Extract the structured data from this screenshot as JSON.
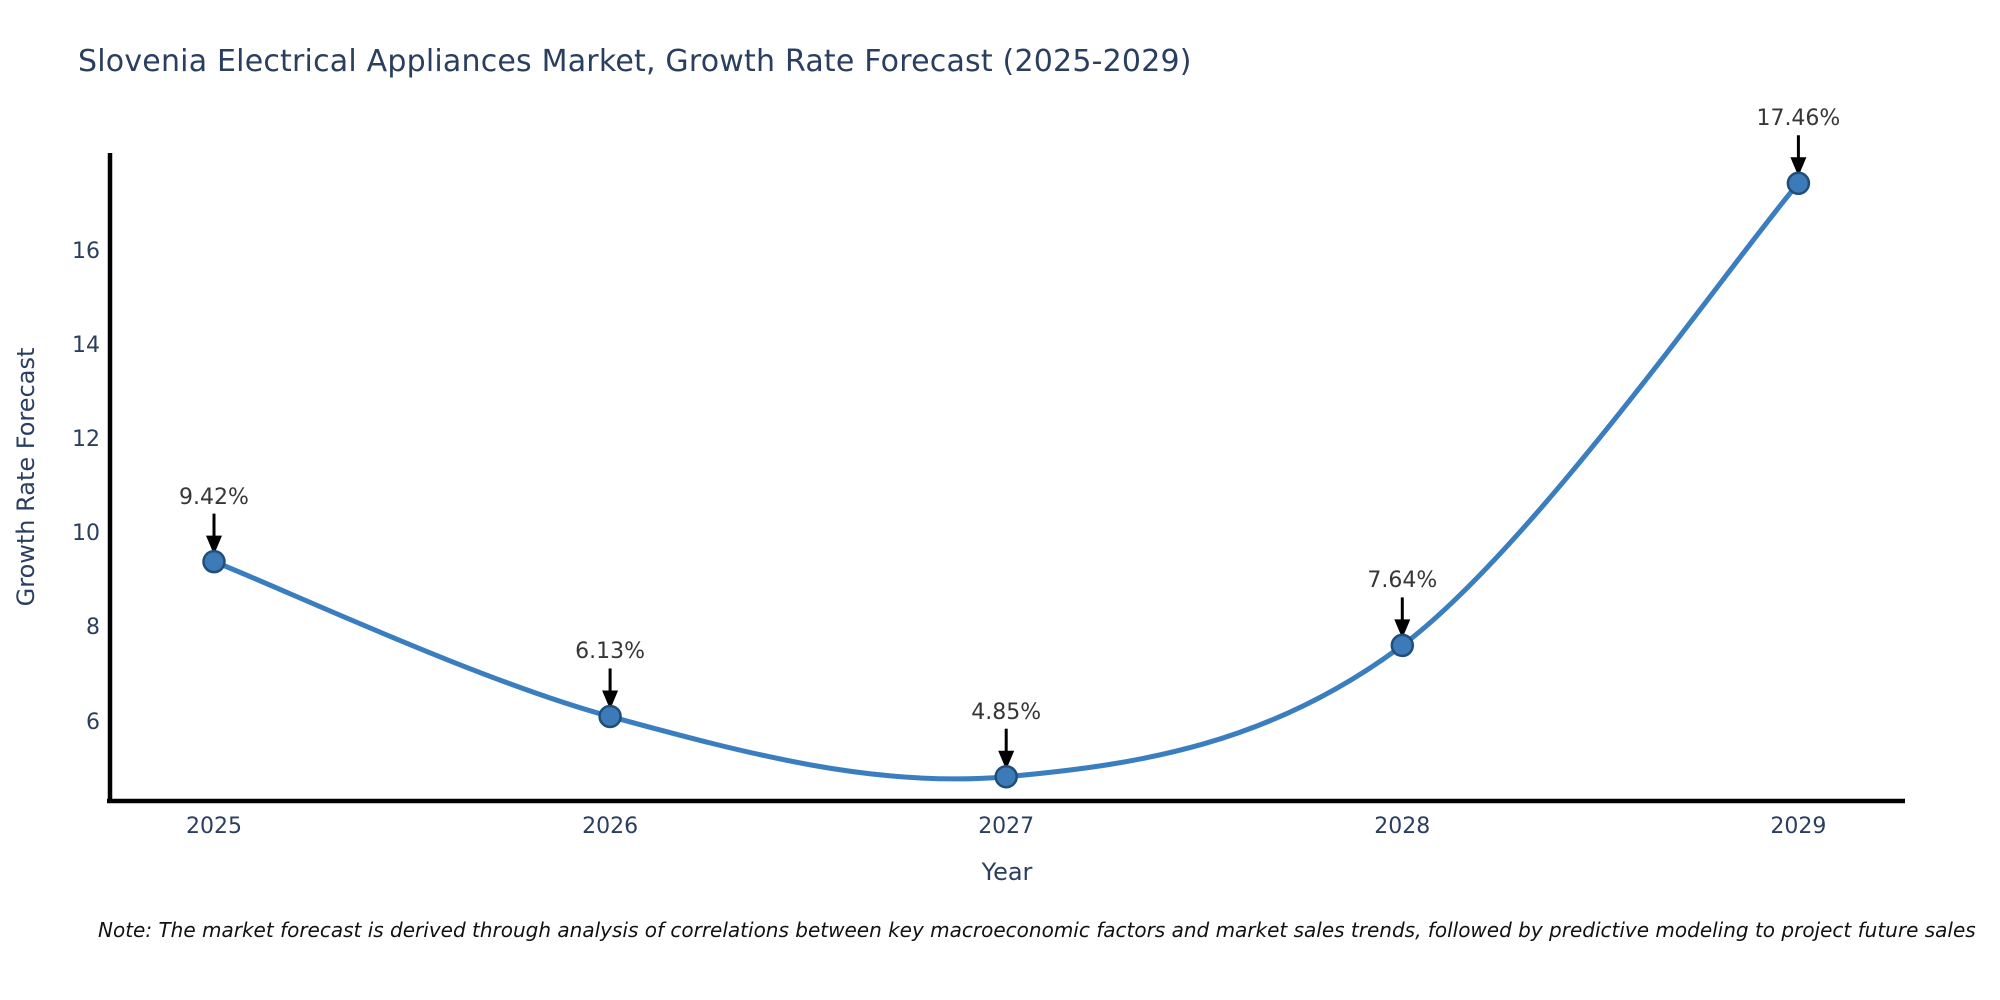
{
  "chart_data": {
    "type": "line",
    "title": "Slovenia Electrical Appliances Market, Growth Rate Forecast (2025-2029)",
    "xlabel": "Year",
    "ylabel": "Growth Rate Forecast",
    "x": [
      2025,
      2026,
      2027,
      2028,
      2029
    ],
    "series": [
      {
        "name": "Growth Rate Forecast",
        "values": [
          9.42,
          6.13,
          4.85,
          7.64,
          17.46
        ],
        "labels": [
          "9.42%",
          "6.13%",
          "4.85%",
          "7.64%",
          "17.46%"
        ]
      }
    ],
    "yticks": [
      6,
      8,
      10,
      12,
      14,
      16
    ],
    "ylim": [
      4.35,
      18.15
    ],
    "grid": false,
    "legend_position": "none",
    "line_shape": "spline",
    "colors": {
      "line": "#3a7ebf",
      "marker_fill": "#3d7bb8",
      "marker_edge": "#1f4e79",
      "axis": "#000000",
      "arrow": "#000000",
      "title_text": "#2a3f5f",
      "annotation_text": "#363636",
      "background": "#ffffff"
    }
  },
  "footnote": "Note: The market forecast is derived through analysis of correlations between key macroeconomic factors and market sales trends, followed by predictive modeling to project future sales"
}
